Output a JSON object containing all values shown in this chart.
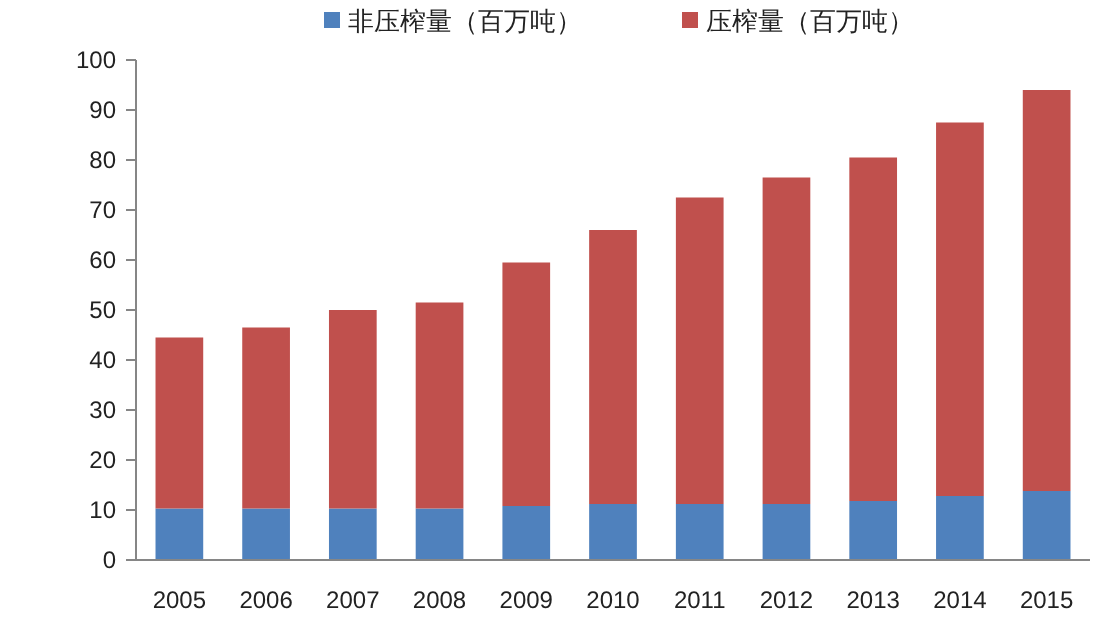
{
  "chart_data": {
    "type": "bar",
    "stacked": true,
    "categories": [
      "2005",
      "2006",
      "2007",
      "2008",
      "2009",
      "2010",
      "2011",
      "2012",
      "2013",
      "2014",
      "2015"
    ],
    "series": [
      {
        "name": "非压榨量（百万吨）",
        "color": "#4f81bd",
        "values": [
          10.3,
          10.3,
          10.3,
          10.3,
          10.8,
          11.2,
          11.2,
          11.2,
          11.8,
          12.8,
          13.8
        ]
      },
      {
        "name": "压榨量（百万吨）",
        "color": "#c0504d",
        "values": [
          34.2,
          36.2,
          39.7,
          41.2,
          48.7,
          54.8,
          61.3,
          65.3,
          68.7,
          74.7,
          80.2
        ]
      }
    ],
    "ylim": [
      0,
      100
    ],
    "yticks": [
      0,
      10,
      20,
      30,
      40,
      50,
      60,
      70,
      80,
      90,
      100
    ],
    "grid": false,
    "legend": "top"
  }
}
